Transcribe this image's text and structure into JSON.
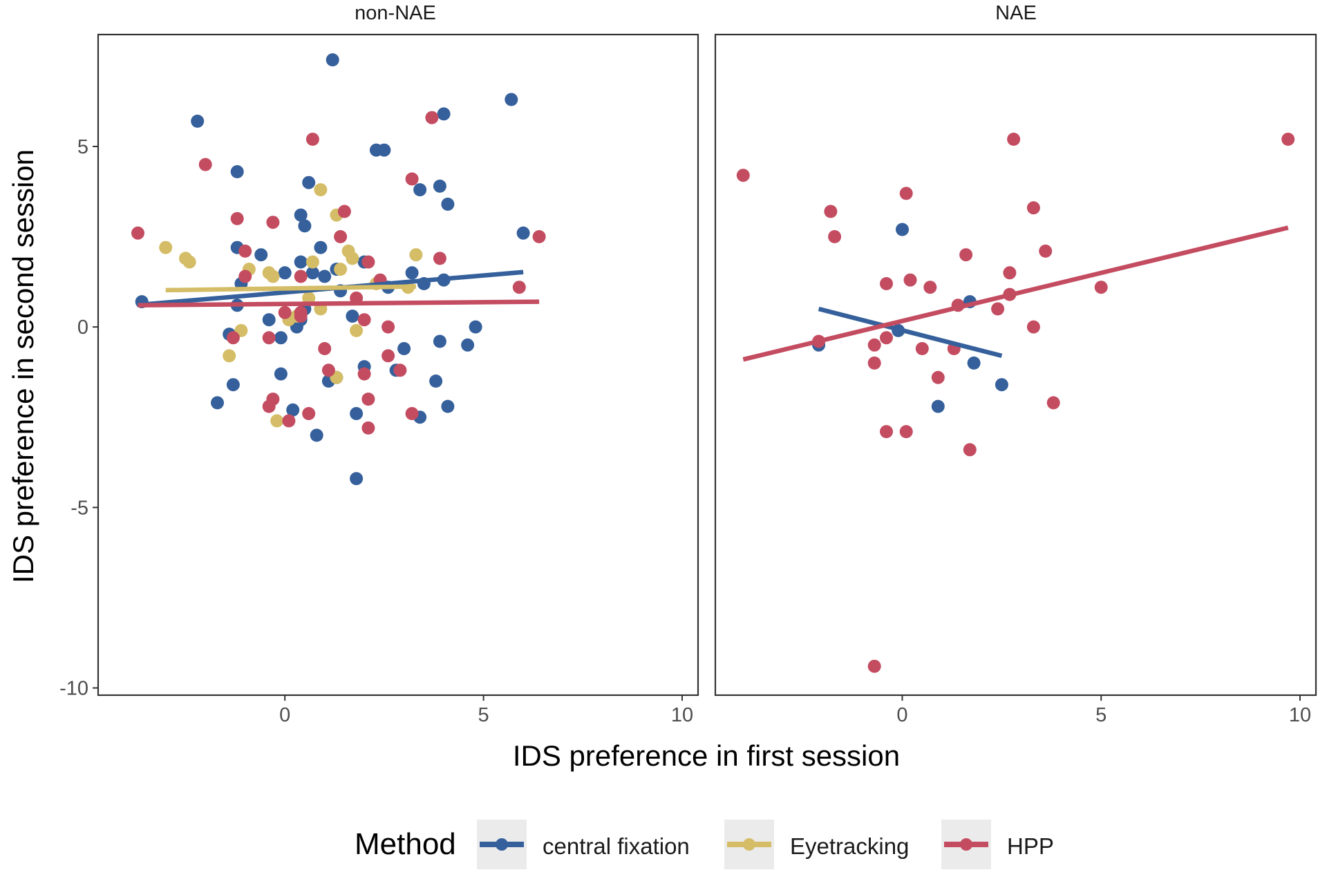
{
  "chart_data": {
    "type": "scatter",
    "xlabel": "IDS preference in first session",
    "ylabel": "IDS preference in second session",
    "xlim": [
      -4.7,
      10.4
    ],
    "ylim": [
      -10.2,
      8.1
    ],
    "xticks": [
      0,
      5,
      10
    ],
    "xtick_labels": [
      "0",
      "5",
      "10"
    ],
    "yticks": [
      5,
      0,
      -5,
      -10
    ],
    "ytick_labels": [
      "5",
      "0",
      "-5",
      "-10"
    ],
    "grid": false,
    "legend": {
      "title": "Method",
      "position": "bottom",
      "entries": [
        "central fixation",
        "Eyetracking",
        "HPP"
      ]
    },
    "colors": {
      "central fixation": "#35609b",
      "Eyetracking": "#d4bd66",
      "HPP": "#c44c61"
    },
    "panels": [
      {
        "title": "non-NAE",
        "series": [
          {
            "name": "central fixation",
            "points": [
              [
                -3.6,
                0.7
              ],
              [
                1.2,
                7.4
              ],
              [
                -2.2,
                5.7
              ],
              [
                5.7,
                6.3
              ],
              [
                4.0,
                5.9
              ],
              [
                2.3,
                4.9
              ],
              [
                2.5,
                4.9
              ],
              [
                -1.2,
                4.3
              ],
              [
                0.6,
                4.0
              ],
              [
                3.9,
                3.9
              ],
              [
                3.4,
                3.8
              ],
              [
                4.1,
                3.4
              ],
              [
                0.4,
                3.1
              ],
              [
                0.5,
                2.8
              ],
              [
                6.0,
                2.6
              ],
              [
                -1.2,
                2.2
              ],
              [
                -0.6,
                2.0
              ],
              [
                0.9,
                2.2
              ],
              [
                0.4,
                1.8
              ],
              [
                2.0,
                1.8
              ],
              [
                -1.1,
                1.2
              ],
              [
                0.0,
                1.5
              ],
              [
                0.7,
                1.5
              ],
              [
                1.3,
                1.6
              ],
              [
                1.0,
                1.4
              ],
              [
                3.2,
                1.5
              ],
              [
                3.5,
                1.2
              ],
              [
                4.0,
                1.3
              ],
              [
                1.4,
                1.0
              ],
              [
                2.6,
                1.1
              ],
              [
                -1.2,
                0.6
              ],
              [
                0.5,
                0.5
              ],
              [
                0.4,
                0.2
              ],
              [
                1.7,
                0.3
              ],
              [
                -0.4,
                0.2
              ],
              [
                0.3,
                0.0
              ],
              [
                4.8,
                0.0
              ],
              [
                -1.4,
                -0.2
              ],
              [
                -0.1,
                -0.3
              ],
              [
                3.9,
                -0.4
              ],
              [
                4.6,
                -0.5
              ],
              [
                3.0,
                -0.6
              ],
              [
                2.0,
                -1.1
              ],
              [
                -0.1,
                -1.3
              ],
              [
                2.8,
                -1.2
              ],
              [
                1.3,
                -1.4
              ],
              [
                1.1,
                -1.5
              ],
              [
                3.8,
                -1.5
              ],
              [
                -1.3,
                -1.6
              ],
              [
                -1.7,
                -2.1
              ],
              [
                4.1,
                -2.2
              ],
              [
                0.2,
                -2.3
              ],
              [
                1.8,
                -2.4
              ],
              [
                3.4,
                -2.5
              ],
              [
                0.8,
                -3.0
              ],
              [
                1.8,
                -4.2
              ]
            ]
          },
          {
            "name": "Eyetracking",
            "points": [
              [
                -3.0,
                2.2
              ],
              [
                -2.5,
                1.9
              ],
              [
                -2.4,
                1.8
              ],
              [
                -0.9,
                1.6
              ],
              [
                -0.4,
                1.5
              ],
              [
                -0.3,
                1.4
              ],
              [
                0.7,
                1.8
              ],
              [
                1.3,
                3.1
              ],
              [
                0.9,
                3.8
              ],
              [
                1.6,
                2.1
              ],
              [
                1.7,
                1.9
              ],
              [
                1.4,
                1.6
              ],
              [
                2.3,
                1.2
              ],
              [
                3.3,
                2.0
              ],
              [
                3.1,
                1.1
              ],
              [
                0.6,
                0.8
              ],
              [
                0.9,
                0.5
              ],
              [
                0.1,
                0.2
              ],
              [
                0.3,
                0.3
              ],
              [
                -1.1,
                -0.1
              ],
              [
                1.8,
                -0.1
              ],
              [
                -1.4,
                -0.8
              ],
              [
                1.3,
                -1.4
              ],
              [
                -0.2,
                -2.6
              ]
            ]
          },
          {
            "name": "HPP",
            "points": [
              [
                -3.7,
                2.6
              ],
              [
                -2.0,
                4.5
              ],
              [
                0.7,
                5.2
              ],
              [
                3.7,
                5.8
              ],
              [
                3.2,
                4.1
              ],
              [
                -1.2,
                3.0
              ],
              [
                -0.3,
                2.9
              ],
              [
                1.5,
                3.2
              ],
              [
                1.4,
                2.5
              ],
              [
                -1.0,
                2.1
              ],
              [
                6.4,
                2.5
              ],
              [
                3.9,
                1.9
              ],
              [
                2.1,
                1.8
              ],
              [
                -1.0,
                1.4
              ],
              [
                2.4,
                1.3
              ],
              [
                5.9,
                1.1
              ],
              [
                0.4,
                1.4
              ],
              [
                1.8,
                0.8
              ],
              [
                0.0,
                0.4
              ],
              [
                0.4,
                0.4
              ],
              [
                0.4,
                0.3
              ],
              [
                2.0,
                0.2
              ],
              [
                2.6,
                0.0
              ],
              [
                -1.3,
                -0.3
              ],
              [
                -0.4,
                -0.3
              ],
              [
                1.0,
                -0.6
              ],
              [
                2.6,
                -0.8
              ],
              [
                1.1,
                -1.2
              ],
              [
                2.9,
                -1.2
              ],
              [
                2.0,
                -1.3
              ],
              [
                -0.3,
                -2.0
              ],
              [
                2.1,
                -2.0
              ],
              [
                -0.4,
                -2.2
              ],
              [
                0.6,
                -2.4
              ],
              [
                3.2,
                -2.4
              ],
              [
                0.1,
                -2.6
              ],
              [
                2.1,
                -2.8
              ]
            ]
          }
        ],
        "fits": [
          {
            "name": "central fixation",
            "x": [
              -3.6,
              6.0
            ],
            "y": [
              0.62,
              1.52
            ]
          },
          {
            "name": "Eyetracking",
            "x": [
              -3.0,
              3.3
            ],
            "y": [
              1.02,
              1.12
            ]
          },
          {
            "name": "HPP",
            "x": [
              -3.7,
              6.4
            ],
            "y": [
              0.6,
              0.7
            ]
          }
        ]
      },
      {
        "title": "NAE",
        "series": [
          {
            "name": "central fixation",
            "points": [
              [
                0.0,
                2.7
              ],
              [
                -2.1,
                -0.5
              ],
              [
                -0.1,
                -0.1
              ],
              [
                1.7,
                0.7
              ],
              [
                1.8,
                -1.0
              ],
              [
                2.5,
                -1.6
              ],
              [
                0.9,
                -2.2
              ]
            ]
          },
          {
            "name": "HPP",
            "points": [
              [
                -4.0,
                4.2
              ],
              [
                2.8,
                5.2
              ],
              [
                9.7,
                5.2
              ],
              [
                0.1,
                3.7
              ],
              [
                -1.8,
                3.2
              ],
              [
                3.3,
                3.3
              ],
              [
                -1.7,
                2.5
              ],
              [
                3.6,
                2.1
              ],
              [
                1.6,
                2.0
              ],
              [
                2.7,
                1.5
              ],
              [
                -0.4,
                1.2
              ],
              [
                0.2,
                1.3
              ],
              [
                0.7,
                1.1
              ],
              [
                5.0,
                1.1
              ],
              [
                2.7,
                0.9
              ],
              [
                1.4,
                0.6
              ],
              [
                2.4,
                0.5
              ],
              [
                3.3,
                0.0
              ],
              [
                -2.1,
                -0.4
              ],
              [
                -0.4,
                -0.3
              ],
              [
                -0.7,
                -0.5
              ],
              [
                0.5,
                -0.6
              ],
              [
                1.3,
                -0.6
              ],
              [
                -0.7,
                -1.0
              ],
              [
                0.9,
                -1.4
              ],
              [
                3.8,
                -2.1
              ],
              [
                -0.4,
                -2.9
              ],
              [
                0.1,
                -2.9
              ],
              [
                1.7,
                -3.4
              ],
              [
                -0.7,
                -9.4
              ]
            ]
          }
        ],
        "fits": [
          {
            "name": "central fixation",
            "x": [
              -2.1,
              2.5
            ],
            "y": [
              0.5,
              -0.8
            ]
          },
          {
            "name": "HPP",
            "x": [
              -4.0,
              9.7
            ],
            "y": [
              -0.9,
              2.75
            ]
          }
        ]
      }
    ]
  }
}
